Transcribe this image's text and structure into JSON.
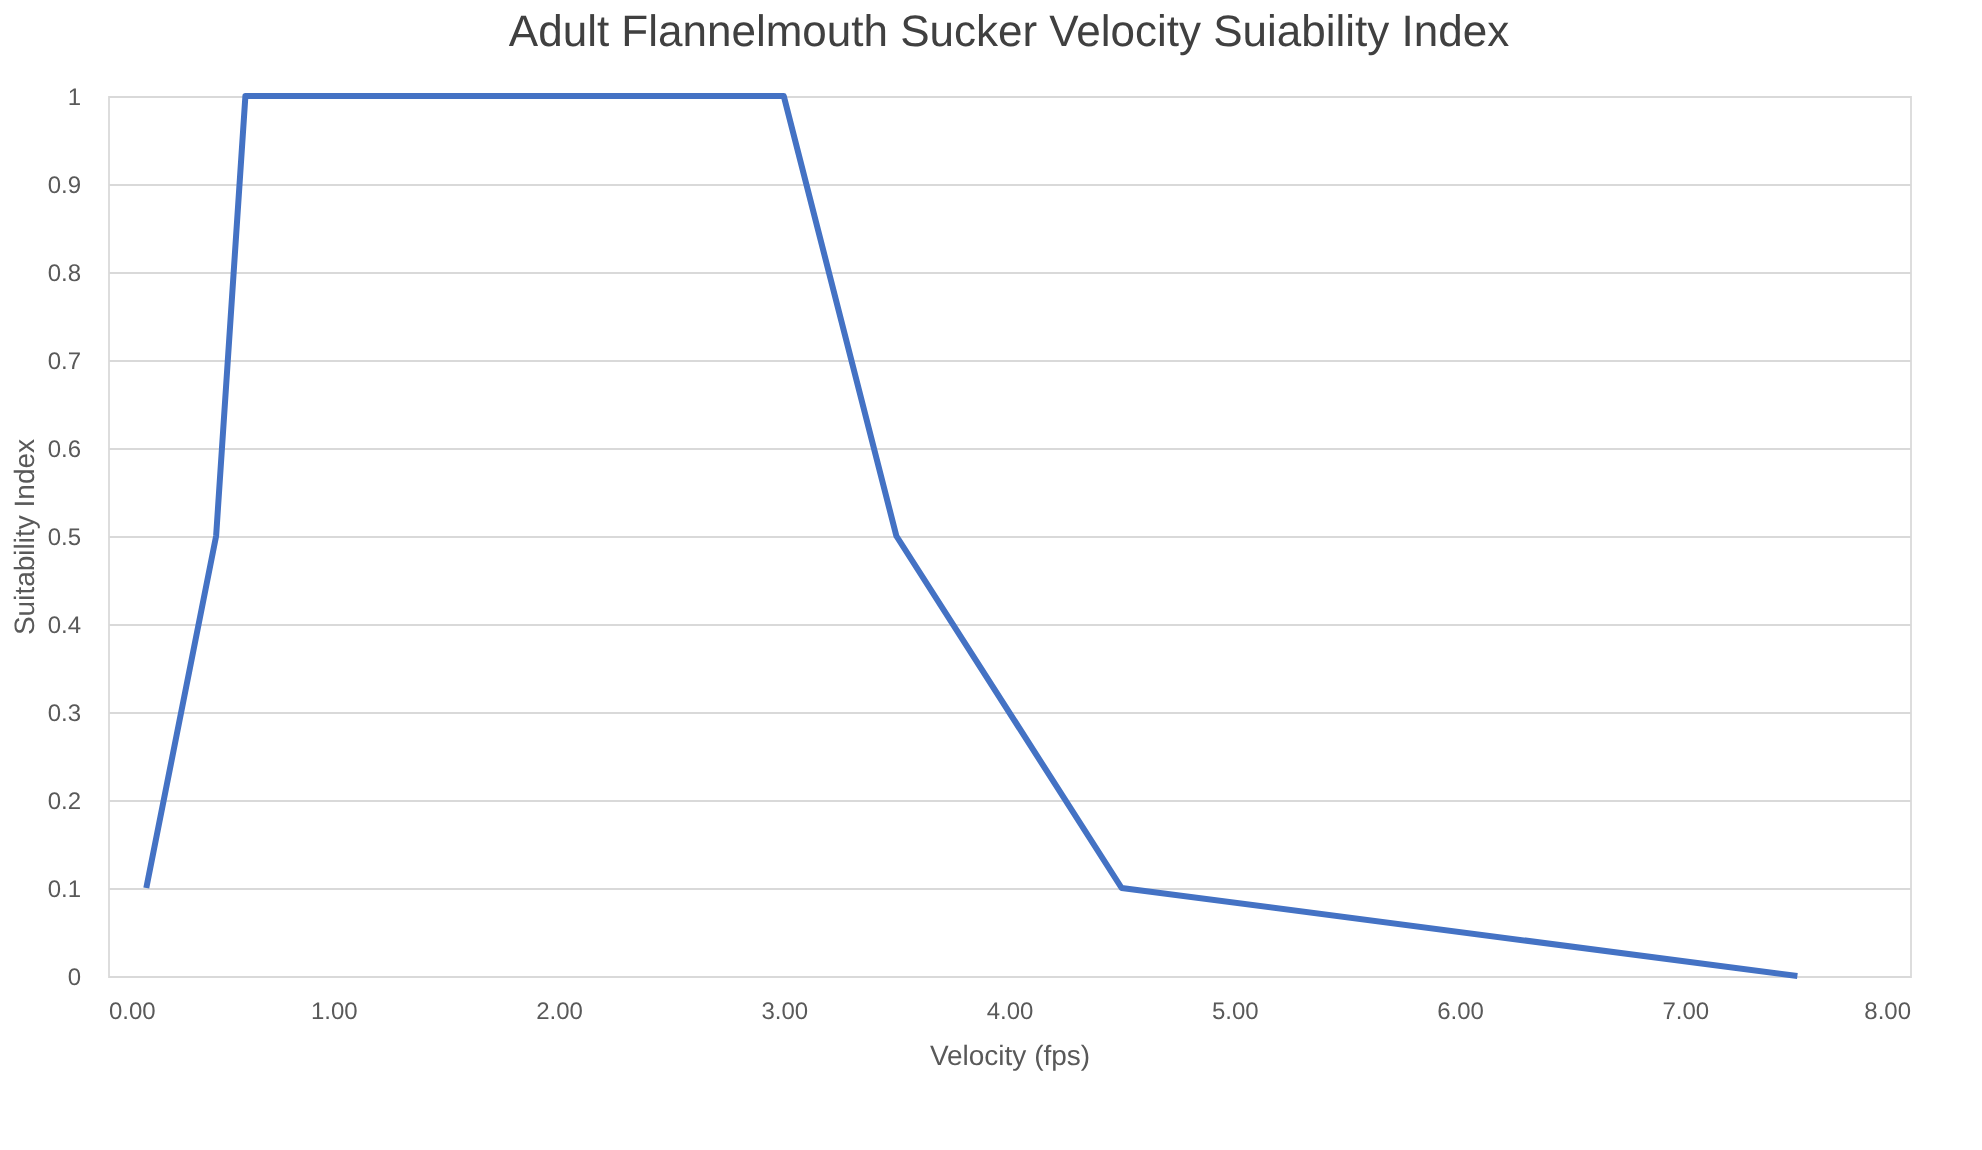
{
  "chart_data": {
    "type": "line",
    "title": "Adult Flannelmouth Sucker Velocity Suiability Index",
    "xlabel": "Velocity (fps)",
    "ylabel": "Suitability Index",
    "x": [
      0.17,
      0.48,
      0.61,
      3.0,
      3.5,
      4.5,
      7.5
    ],
    "series": [
      {
        "color": "#4472c4",
        "values": [
          0.1,
          0.5,
          1,
          1,
          0.5,
          0.1,
          0
        ]
      }
    ],
    "xlim": [
      0,
      8
    ],
    "xticks": [
      {
        "value": 0,
        "label": "0.00"
      },
      {
        "value": 1,
        "label": "1.00"
      },
      {
        "value": 2,
        "label": "2.00"
      },
      {
        "value": 3,
        "label": "3.00"
      },
      {
        "value": 4,
        "label": "4.00"
      },
      {
        "value": 5,
        "label": "5.00"
      },
      {
        "value": 6,
        "label": "6.00"
      },
      {
        "value": 7,
        "label": "7.00"
      },
      {
        "value": 8,
        "label": "8.00"
      }
    ],
    "ylim": [
      0,
      1
    ],
    "yticks": [
      0,
      0.1,
      0.2,
      0.3,
      0.4,
      0.5,
      0.6,
      0.7,
      0.8,
      0.9,
      1
    ],
    "grid": "y",
    "marker": "none",
    "line_style": "solid"
  }
}
